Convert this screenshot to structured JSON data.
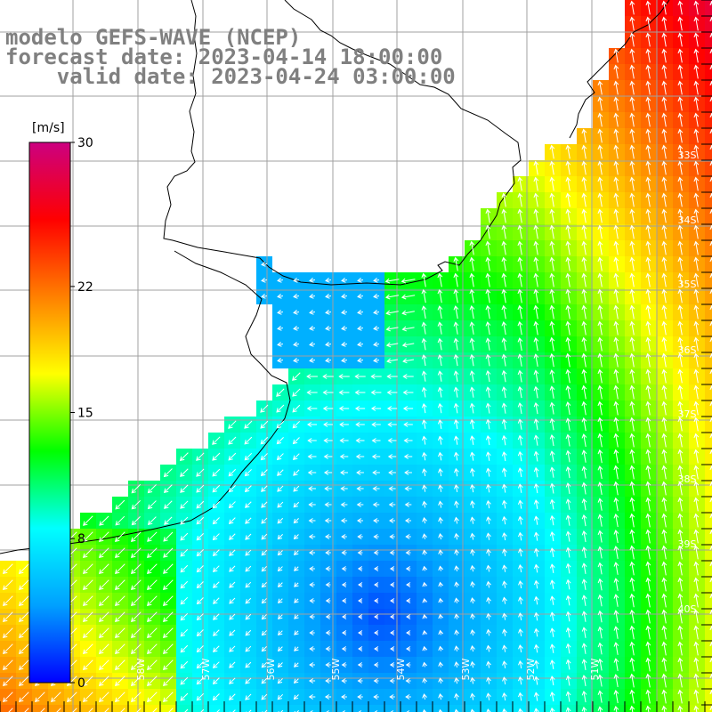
{
  "title": {
    "line1": "modelo GEFS-WAVE (NCEP)",
    "line2": "forecast date: 2023-04-14 18:00:00",
    "line3": "    valid date: 2023-04-24 03:00:00"
  },
  "colorbar": {
    "unit_label": "[m/s]",
    "min": 0,
    "max": 30,
    "ticks": [
      {
        "label": "30",
        "value": 30
      },
      {
        "label": "22",
        "value": 22
      },
      {
        "label": "15",
        "value": 15
      },
      {
        "label": "8",
        "value": 8
      },
      {
        "label": "0",
        "value": 0
      }
    ],
    "colors": [
      "#0000ff",
      "#00a0ff",
      "#00ffff",
      "#00ff00",
      "#ffff00",
      "#ff8000",
      "#ff0000",
      "#cc0080"
    ]
  },
  "latitude_labels": [
    "33S",
    "34S",
    "35S",
    "36S",
    "37S",
    "38S",
    "39S",
    "40S"
  ],
  "longitude_labels": [
    "58W",
    "57W",
    "56W",
    "55W",
    "54W",
    "53W",
    "52W",
    "51W"
  ],
  "colors": {
    "land": "#ffffff",
    "grid": "#a0a0a0",
    "coast": "#000000",
    "arrow": "#ffffff",
    "title": "#808080"
  }
}
